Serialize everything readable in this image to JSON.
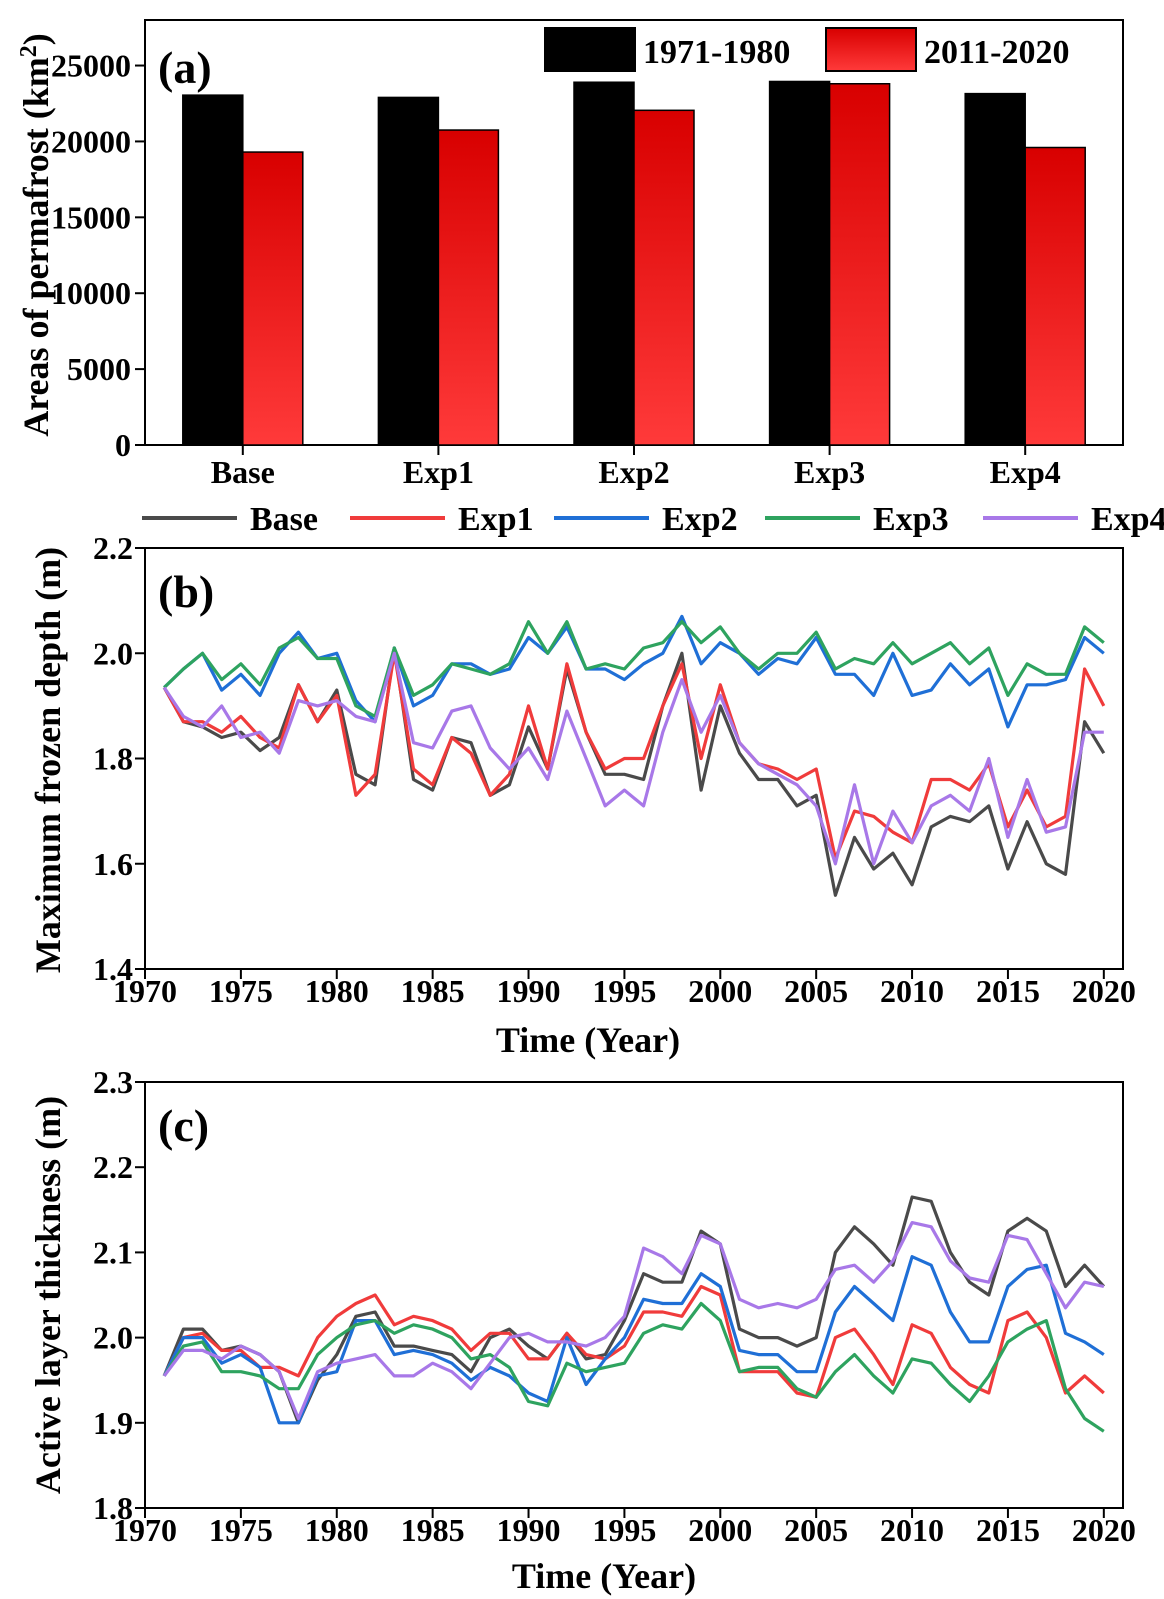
{
  "colors": {
    "black_bar": "#000000",
    "red_bar": "#ff0000",
    "Base": "#4a4a4a",
    "Exp1": "#f03b3b",
    "Exp2": "#1f6fd6",
    "Exp3": "#2ea35f",
    "Exp4": "#a878e8"
  },
  "chart_data": [
    {
      "type": "bar",
      "panel_label": "(a)",
      "ylabel_pre": "Areas of  permafrost (km",
      "ylabel_sup": "2",
      "ylabel_post": ")",
      "categories": [
        "Base",
        "Exp1",
        "Exp2",
        "Exp3",
        "Exp4"
      ],
      "series": [
        {
          "name": "1971-1980",
          "values": [
            23050,
            22900,
            23900,
            23950,
            23150
          ]
        },
        {
          "name": "2011-2020",
          "values": [
            19300,
            20750,
            22050,
            23800,
            19600
          ]
        }
      ],
      "ylim": [
        0,
        28000
      ],
      "yticks": [
        "0",
        "5000",
        "10000",
        "15000",
        "20000",
        "25000"
      ],
      "legend": "top-right"
    },
    {
      "type": "line",
      "panel_label": "(b)",
      "ylabel": "Maximum frozen depth (m)",
      "xlabel": "Time (Year)",
      "xlim": [
        1970,
        2021
      ],
      "ylim": [
        1.4,
        2.2
      ],
      "xticks": [
        "1970",
        "1975",
        "1980",
        "1985",
        "1990",
        "1995",
        "2000",
        "2005",
        "2010",
        "2015",
        "2020"
      ],
      "yticks": [
        "1.4",
        "1.6",
        "1.8",
        "2.0",
        "2.2"
      ],
      "legend": "top-outside",
      "x_start": 1971,
      "series": [
        {
          "name": "Base",
          "values": [
            1.935,
            1.87,
            1.86,
            1.84,
            1.85,
            1.815,
            1.84,
            1.94,
            1.87,
            1.93,
            1.77,
            1.75,
            2.01,
            1.76,
            1.74,
            1.84,
            1.83,
            1.73,
            1.75,
            1.86,
            1.78,
            1.97,
            1.85,
            1.77,
            1.77,
            1.76,
            1.9,
            2.0,
            1.74,
            1.9,
            1.81,
            1.76,
            1.76,
            1.71,
            1.73,
            1.54,
            1.65,
            1.59,
            1.62,
            1.56,
            1.67,
            1.69,
            1.68,
            1.71,
            1.59,
            1.68,
            1.6,
            1.58,
            1.87,
            1.81
          ]
        },
        {
          "name": "Exp1",
          "values": [
            1.935,
            1.87,
            1.87,
            1.85,
            1.88,
            1.84,
            1.82,
            1.94,
            1.87,
            1.92,
            1.73,
            1.77,
            2.0,
            1.78,
            1.75,
            1.84,
            1.81,
            1.73,
            1.77,
            1.9,
            1.78,
            1.98,
            1.85,
            1.78,
            1.8,
            1.8,
            1.9,
            1.98,
            1.8,
            1.94,
            1.83,
            1.79,
            1.78,
            1.76,
            1.78,
            1.61,
            1.7,
            1.69,
            1.66,
            1.64,
            1.76,
            1.76,
            1.74,
            1.79,
            1.67,
            1.74,
            1.67,
            1.69,
            1.97,
            1.9
          ]
        },
        {
          "name": "Exp2",
          "values": [
            1.935,
            1.97,
            2.0,
            1.93,
            1.96,
            1.92,
            2.0,
            2.04,
            1.99,
            2.0,
            1.91,
            1.87,
            2.01,
            1.9,
            1.92,
            1.98,
            1.98,
            1.96,
            1.97,
            2.03,
            2.0,
            2.05,
            1.97,
            1.97,
            1.95,
            1.98,
            2.0,
            2.07,
            1.98,
            2.02,
            2.0,
            1.96,
            1.99,
            1.98,
            2.03,
            1.96,
            1.96,
            1.92,
            2.0,
            1.92,
            1.93,
            1.98,
            1.94,
            1.97,
            1.86,
            1.94,
            1.94,
            1.95,
            2.03,
            2.0
          ]
        },
        {
          "name": "Exp3",
          "values": [
            1.935,
            1.97,
            2.0,
            1.95,
            1.98,
            1.94,
            2.01,
            2.03,
            1.99,
            1.99,
            1.9,
            1.88,
            2.01,
            1.92,
            1.94,
            1.98,
            1.97,
            1.96,
            1.98,
            2.06,
            2.0,
            2.06,
            1.97,
            1.98,
            1.97,
            2.01,
            2.02,
            2.06,
            2.02,
            2.05,
            2.0,
            1.97,
            2.0,
            2.0,
            2.04,
            1.97,
            1.99,
            1.98,
            2.02,
            1.98,
            2.0,
            2.02,
            1.98,
            2.01,
            1.92,
            1.98,
            1.96,
            1.96,
            2.05,
            2.02
          ]
        },
        {
          "name": "Exp4",
          "values": [
            1.935,
            1.88,
            1.86,
            1.9,
            1.84,
            1.85,
            1.81,
            1.91,
            1.9,
            1.91,
            1.88,
            1.87,
            2.0,
            1.83,
            1.82,
            1.89,
            1.9,
            1.82,
            1.78,
            1.82,
            1.76,
            1.89,
            1.8,
            1.71,
            1.74,
            1.71,
            1.85,
            1.95,
            1.85,
            1.92,
            1.83,
            1.79,
            1.77,
            1.75,
            1.71,
            1.6,
            1.75,
            1.6,
            1.7,
            1.64,
            1.71,
            1.73,
            1.7,
            1.8,
            1.65,
            1.76,
            1.66,
            1.67,
            1.85,
            1.85
          ]
        }
      ]
    },
    {
      "type": "line",
      "panel_label": "(c)",
      "ylabel": "Active layer thickness (m)",
      "xlabel": "Time (Year)",
      "xlim": [
        1970,
        2021
      ],
      "ylim": [
        1.8,
        2.3
      ],
      "xticks": [
        "1970",
        "1975",
        "1980",
        "1985",
        "1990",
        "1995",
        "2000",
        "2005",
        "2010",
        "2015",
        "2020"
      ],
      "yticks": [
        "1.8",
        "1.9",
        "2.0",
        "2.1",
        "2.2",
        "2.3"
      ],
      "x_start": 1971,
      "series": [
        {
          "name": "Base",
          "values": [
            1.955,
            2.01,
            2.01,
            1.985,
            1.99,
            1.98,
            1.96,
            1.9,
            1.95,
            1.98,
            2.025,
            2.03,
            1.99,
            1.99,
            1.985,
            1.98,
            1.96,
            2.0,
            2.01,
            1.99,
            1.975,
            2.005,
            1.975,
            1.98,
            2.02,
            2.075,
            2.065,
            2.065,
            2.125,
            2.11,
            2.01,
            2.0,
            2.0,
            1.99,
            2.0,
            2.1,
            2.13,
            2.11,
            2.085,
            2.165,
            2.16,
            2.1,
            2.065,
            2.05,
            2.125,
            2.14,
            2.125,
            2.06,
            2.085,
            2.06
          ]
        },
        {
          "name": "Exp1",
          "values": [
            1.955,
            2.0,
            2.005,
            1.985,
            1.985,
            1.965,
            1.965,
            1.955,
            2.0,
            2.025,
            2.04,
            2.05,
            2.015,
            2.025,
            2.02,
            2.01,
            1.985,
            2.005,
            2.005,
            1.975,
            1.975,
            2.005,
            1.98,
            1.975,
            1.99,
            2.03,
            2.03,
            2.025,
            2.06,
            2.05,
            1.96,
            1.96,
            1.96,
            1.935,
            1.93,
            2.0,
            2.01,
            1.98,
            1.945,
            2.015,
            2.005,
            1.965,
            1.945,
            1.935,
            2.02,
            2.03,
            2.0,
            1.935,
            1.955,
            1.935
          ]
        },
        {
          "name": "Exp2",
          "values": [
            1.955,
            2.0,
            2.0,
            1.97,
            1.98,
            1.965,
            1.9,
            1.9,
            1.955,
            1.96,
            2.02,
            2.02,
            1.98,
            1.985,
            1.98,
            1.97,
            1.95,
            1.965,
            1.955,
            1.935,
            1.925,
            2.0,
            1.945,
            1.975,
            2.0,
            2.045,
            2.04,
            2.04,
            2.075,
            2.06,
            1.985,
            1.98,
            1.98,
            1.96,
            1.96,
            2.03,
            2.06,
            2.04,
            2.02,
            2.095,
            2.085,
            2.03,
            1.995,
            1.995,
            2.06,
            2.08,
            2.085,
            2.005,
            1.995,
            1.98
          ]
        },
        {
          "name": "Exp3",
          "values": [
            1.955,
            1.99,
            1.995,
            1.96,
            1.96,
            1.955,
            1.94,
            1.94,
            1.98,
            2.0,
            2.015,
            2.02,
            2.005,
            2.015,
            2.01,
            2.0,
            1.975,
            1.98,
            1.965,
            1.925,
            1.92,
            1.97,
            1.96,
            1.965,
            1.97,
            2.005,
            2.015,
            2.01,
            2.04,
            2.02,
            1.96,
            1.965,
            1.965,
            1.94,
            1.93,
            1.96,
            1.98,
            1.955,
            1.935,
            1.975,
            1.97,
            1.945,
            1.925,
            1.955,
            1.995,
            2.01,
            2.02,
            1.94,
            1.905,
            1.89
          ]
        },
        {
          "name": "Exp4",
          "values": [
            1.955,
            1.985,
            1.985,
            1.975,
            1.99,
            1.98,
            1.96,
            1.905,
            1.96,
            1.97,
            1.975,
            1.98,
            1.955,
            1.955,
            1.97,
            1.96,
            1.94,
            1.97,
            2.0,
            2.005,
            1.995,
            1.995,
            1.99,
            2.0,
            2.025,
            2.105,
            2.095,
            2.075,
            2.12,
            2.11,
            2.045,
            2.035,
            2.04,
            2.035,
            2.045,
            2.08,
            2.085,
            2.065,
            2.09,
            2.135,
            2.13,
            2.09,
            2.07,
            2.065,
            2.12,
            2.115,
            2.075,
            2.035,
            2.065,
            2.06
          ]
        }
      ]
    }
  ]
}
